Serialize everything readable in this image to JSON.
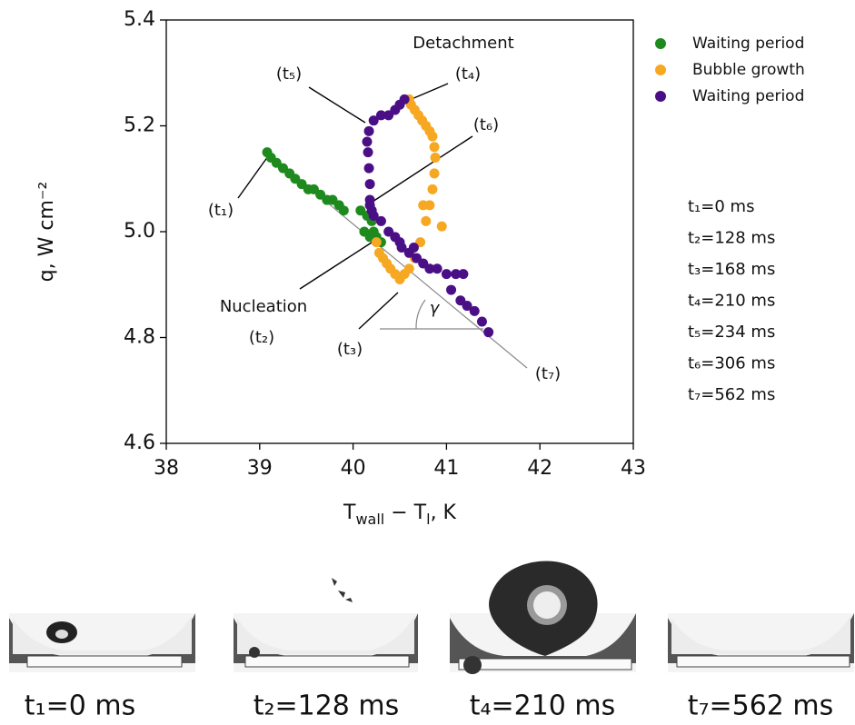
{
  "chart_data": {
    "type": "scatter",
    "ylabel": "q, W cm⁻²",
    "xlabel": [
      "T",
      "wall",
      " − T",
      "l",
      ", K"
    ],
    "xlim": [
      38,
      43
    ],
    "xticks": [
      38,
      39,
      40,
      41,
      42,
      43
    ],
    "ylim": [
      4.6,
      5.4
    ],
    "yticks": [
      4.6,
      4.8,
      {
        "value": 5,
        "label": "5.0"
      },
      5.2,
      5.4
    ],
    "legend": "upper right outside",
    "series": [
      {
        "name": "Waiting period",
        "color": "#1e8a1e",
        "x": [
          39.08,
          39.12,
          39.18,
          39.25,
          39.32,
          39.38,
          39.45,
          39.52,
          39.58,
          39.65,
          39.72,
          39.78,
          39.85,
          39.9,
          40.08,
          40.15,
          40.2,
          40.22,
          40.18,
          40.25,
          40.3,
          40.12
        ],
        "values": [
          5.15,
          5.14,
          5.13,
          5.12,
          5.11,
          5.1,
          5.09,
          5.08,
          5.08,
          5.07,
          5.06,
          5.06,
          5.05,
          5.04,
          5.04,
          5.03,
          5.02,
          5.0,
          4.99,
          4.99,
          4.98,
          5.0
        ]
      },
      {
        "name": "Bubble growth",
        "color": "#f7a823",
        "x": [
          40.25,
          40.28,
          40.32,
          40.36,
          40.4,
          40.45,
          40.5,
          40.55,
          40.6,
          40.66,
          40.72,
          40.78,
          40.82,
          40.85,
          40.87,
          40.88,
          40.87,
          40.85,
          40.82,
          40.78,
          40.74,
          40.7,
          40.66,
          40.62,
          40.6,
          40.75,
          40.95
        ],
        "values": [
          4.98,
          4.96,
          4.95,
          4.94,
          4.93,
          4.92,
          4.91,
          4.92,
          4.93,
          4.95,
          4.98,
          5.02,
          5.05,
          5.08,
          5.11,
          5.14,
          5.16,
          5.18,
          5.19,
          5.2,
          5.21,
          5.22,
          5.23,
          5.24,
          5.25,
          5.05,
          5.01
        ]
      },
      {
        "name": "Waiting period",
        "color": "#4a0f86",
        "x": [
          40.55,
          40.5,
          40.45,
          40.38,
          40.3,
          40.22,
          40.17,
          40.15,
          40.16,
          40.17,
          40.18,
          40.18,
          40.2,
          40.18,
          40.22,
          40.3,
          40.38,
          40.45,
          40.52,
          40.6,
          40.68,
          40.75,
          40.82,
          40.9,
          41.0,
          41.1,
          41.18,
          41.05,
          41.15,
          41.22,
          41.3,
          41.38,
          41.45,
          40.65,
          40.5
        ],
        "values": [
          5.25,
          5.24,
          5.23,
          5.22,
          5.22,
          5.21,
          5.19,
          5.17,
          5.15,
          5.12,
          5.09,
          5.06,
          5.04,
          5.05,
          5.03,
          5.02,
          5.0,
          4.99,
          4.97,
          4.96,
          4.95,
          4.94,
          4.93,
          4.93,
          4.92,
          4.92,
          4.92,
          4.89,
          4.87,
          4.86,
          4.85,
          4.83,
          4.81,
          4.97,
          4.98
        ]
      }
    ],
    "annotations": [
      "Detachment",
      "(t₄)",
      "(t₅)",
      "(t₆)",
      "(t₁)",
      "Nucleation",
      "(t₂)",
      "(t₃)",
      "(t₇)",
      "γ"
    ],
    "notes": [
      "t₁=0 ms",
      "t₂=128 ms",
      "t₃=168 ms",
      "t₄=210 ms",
      "t₅=234 ms",
      "t₆=306 ms",
      "t₇=562 ms"
    ]
  },
  "photos": [
    {
      "caption": "t₁=0 ms"
    },
    {
      "caption": "t₂=128 ms"
    },
    {
      "caption": "t₄=210 ms"
    },
    {
      "caption": "t₇=562 ms"
    }
  ]
}
